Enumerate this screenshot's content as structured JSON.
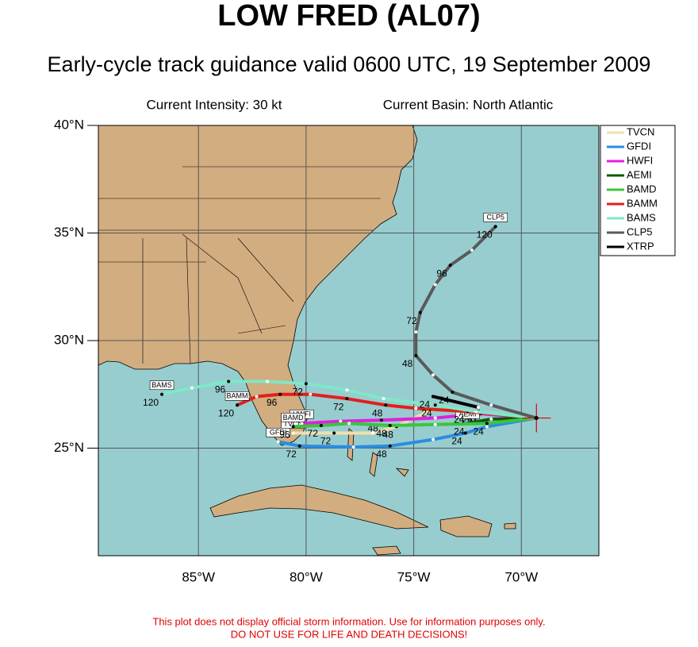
{
  "header": {
    "title": "LOW FRED (AL07)",
    "subtitle": "Early-cycle track guidance valid 0600 UTC, 19 September 2009"
  },
  "info": {
    "intensity": "Current Intensity: 30 kt",
    "basin": "Current Basin: North Atlantic"
  },
  "map": {
    "lon_range": [
      -89.65,
      -66.4
    ],
    "lat_range": [
      20,
      40
    ],
    "lon_ticks": [
      {
        "value": -85,
        "label": "85°W"
      },
      {
        "value": -80,
        "label": "80°W"
      },
      {
        "value": -75,
        "label": "75°W"
      },
      {
        "value": -70,
        "label": "70°W"
      }
    ],
    "lat_ticks": [
      {
        "value": 25,
        "label": "25°N"
      },
      {
        "value": 30,
        "label": "30°N"
      },
      {
        "value": 35,
        "label": "35°N"
      },
      {
        "value": 40,
        "label": "40°N"
      }
    ],
    "current": {
      "lon": -69.3,
      "lat": 26.4
    }
  },
  "tracks": [
    {
      "name": "TVCN",
      "color": "#f2dfae",
      "points": [
        {
          "lon": -69.3,
          "lat": 26.4
        },
        {
          "lon": -72.1,
          "lat": 26.7,
          "hour": 24
        },
        {
          "lon": -74.1,
          "lat": 26.8
        },
        {
          "lon": -75.8,
          "lat": 26.0,
          "hour": 48
        },
        {
          "lon": -76.9,
          "lat": 25.7
        },
        {
          "lon": -78.7,
          "lat": 25.7,
          "hour": 72
        },
        {
          "lon": -80.6,
          "lat": 25.7
        }
      ]
    },
    {
      "name": "GFDI",
      "color": "#2b8de0",
      "points": [
        {
          "lon": -69.3,
          "lat": 26.4
        },
        {
          "lon": -71.6,
          "lat": 26.0
        },
        {
          "lon": -72.6,
          "lat": 25.7,
          "hour": 24
        },
        {
          "lon": -74.1,
          "lat": 25.4
        },
        {
          "lon": -76.1,
          "lat": 25.1,
          "hour": 48
        },
        {
          "lon": -77.8,
          "lat": 25.05
        },
        {
          "lon": -80.3,
          "lat": 25.1,
          "hour": 72
        },
        {
          "lon": -81.3,
          "lat": 25.3
        }
      ]
    },
    {
      "name": "HWFI",
      "color": "#e020e0",
      "points": [
        {
          "lon": -69.3,
          "lat": 26.4
        },
        {
          "lon": -71.9,
          "lat": 26.6,
          "hour": 24
        },
        {
          "lon": -74.0,
          "lat": 26.4
        },
        {
          "lon": -76.5,
          "lat": 26.3,
          "hour": 48
        },
        {
          "lon": -78.4,
          "lat": 26.25
        },
        {
          "lon": -80.2,
          "lat": 26.15
        }
      ]
    },
    {
      "name": "AEMI",
      "color": "#0b5a0b",
      "points": [
        {
          "lon": -69.3,
          "lat": 26.4
        },
        {
          "lon": -71.4,
          "lat": 26.35
        },
        {
          "lon": -72.5,
          "lat": 26.15,
          "hour": 24
        }
      ]
    },
    {
      "name": "BAMD",
      "color": "#3cc43c",
      "points": [
        {
          "lon": -69.3,
          "lat": 26.4
        },
        {
          "lon": -71.6,
          "lat": 26.15,
          "hour": 24
        },
        {
          "lon": -74.0,
          "lat": 26.1
        },
        {
          "lon": -76.1,
          "lat": 26.05,
          "hour": 48
        },
        {
          "lon": -78.0,
          "lat": 26.15
        },
        {
          "lon": -79.3,
          "lat": 26.05,
          "hour": 72
        },
        {
          "lon": -80.6,
          "lat": 26.0,
          "hour": 96
        }
      ]
    },
    {
      "name": "BAMM",
      "color": "#e0201c",
      "points": [
        {
          "lon": -69.3,
          "lat": 26.4
        },
        {
          "lon": -72.5,
          "lat": 26.7,
          "hour": 24
        },
        {
          "lon": -74.9,
          "lat": 26.85
        },
        {
          "lon": -76.3,
          "lat": 27.0,
          "hour": 48
        },
        {
          "lon": -78.1,
          "lat": 27.3,
          "hour": 72
        },
        {
          "lon": -79.8,
          "lat": 27.5
        },
        {
          "lon": -81.2,
          "lat": 27.5,
          "hour": 96
        },
        {
          "lon": -82.3,
          "lat": 27.4
        },
        {
          "lon": -83.2,
          "lat": 27.0,
          "hour": 120
        }
      ]
    },
    {
      "name": "BAMS",
      "color": "#7ee8c8",
      "points": [
        {
          "lon": -69.3,
          "lat": 26.4
        },
        {
          "lon": -72.1,
          "lat": 26.7
        },
        {
          "lon": -74.0,
          "lat": 27.0,
          "hour": 24
        },
        {
          "lon": -76.4,
          "lat": 27.3
        },
        {
          "lon": -78.1,
          "lat": 27.7
        },
        {
          "lon": -80.0,
          "lat": 28.0,
          "hour": 72
        },
        {
          "lon": -81.8,
          "lat": 28.1
        },
        {
          "lon": -83.6,
          "lat": 28.1,
          "hour": 96
        },
        {
          "lon": -85.3,
          "lat": 27.8
        },
        {
          "lon": -86.7,
          "lat": 27.5,
          "hour": 120
        }
      ]
    },
    {
      "name": "CLP5",
      "color": "#5a5a5a",
      "points": [
        {
          "lon": -69.3,
          "lat": 26.4
        },
        {
          "lon": -71.4,
          "lat": 27.0
        },
        {
          "lon": -73.2,
          "lat": 27.6,
          "hour": 24
        },
        {
          "lon": -74.1,
          "lat": 28.4
        },
        {
          "lon": -74.9,
          "lat": 29.3,
          "hour": 48
        },
        {
          "lon": -74.9,
          "lat": 30.4
        },
        {
          "lon": -74.7,
          "lat": 31.3,
          "hour": 72
        },
        {
          "lon": -74.0,
          "lat": 32.6
        },
        {
          "lon": -73.3,
          "lat": 33.5,
          "hour": 96
        },
        {
          "lon": -72.3,
          "lat": 34.2
        },
        {
          "lon": -71.2,
          "lat": 35.3,
          "hour": 120
        }
      ]
    },
    {
      "name": "XTRP",
      "color": "#000000",
      "points": [
        {
          "lon": -72.0,
          "lat": 26.9
        },
        {
          "lon": -74.1,
          "lat": 27.4,
          "hour": 24
        }
      ]
    }
  ],
  "footer": {
    "line1": "This plot does not display official storm information. Use for information purposes only.",
    "line2": "DO NOT USE FOR LIFE AND DEATH DECISIONS!"
  }
}
